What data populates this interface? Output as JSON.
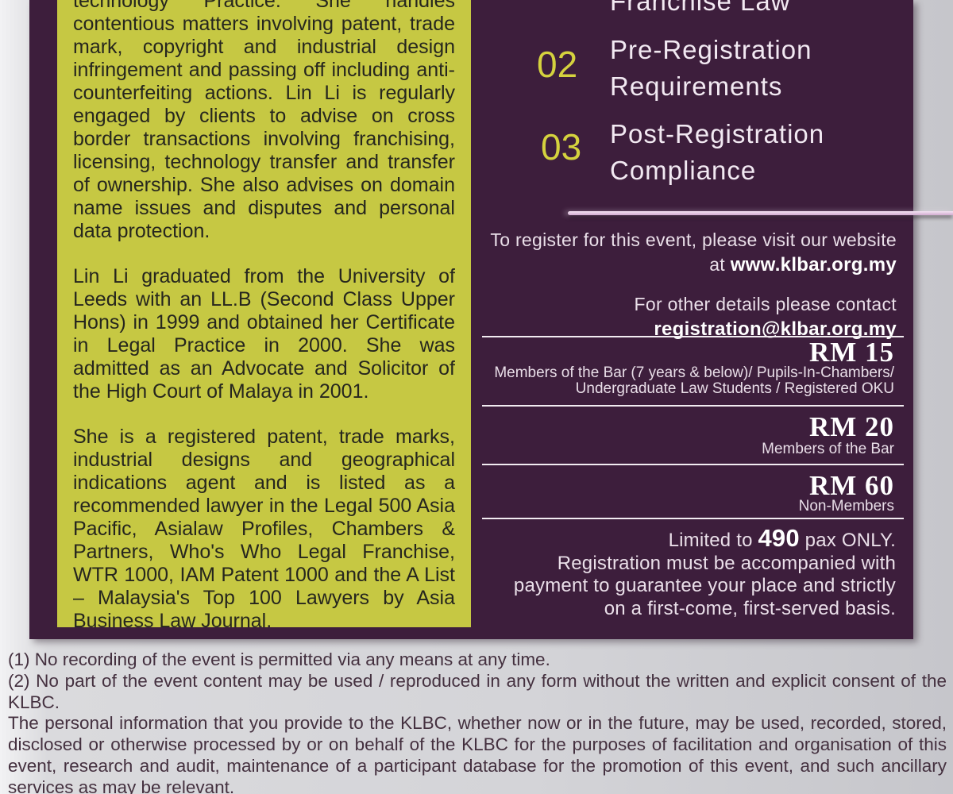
{
  "poster": {
    "bio": {
      "para1": "technology Practice. She handles contentious matters involving patent, trade mark, copyright and industrial design infringement and passing off including anti-counterfeiting actions. Lin Li is regularly engaged by clients to advise on cross border transactions involving franchising, licensing, technology transfer and transfer of ownership. She also advises on domain name issues and disputes and personal data protection.",
      "para2": "Lin Li graduated from the University of Leeds with an LL.B (Second Class Upper Hons) in 1999 and obtained her Certificate in Legal Practice in 2000. She was admitted as an Advocate and Solicitor of the High Court of Malaya in 2001.",
      "para3": "She is a registered patent, trade marks, industrial designs and geographical indications agent and is listed as a recommended lawyer in the Legal 500 Asia Pacific, Asialaw Profiles, Chambers & Partners, Who's Who Legal Franchise, WTR 1000, IAM Patent 1000 and the A List – Malaysia's Top 100 Lawyers by Asia Business Law Journal."
    },
    "agenda": {
      "item01_partial": "Franchise Law",
      "items": [
        {
          "number": "02",
          "line1": "Pre-Registration",
          "line2": "Requirements"
        },
        {
          "number": "03",
          "line1": "Post-Registration",
          "line2": "Compliance"
        }
      ]
    },
    "registration": {
      "line1": "To register for this event, please visit our website",
      "line2_prefix": "at ",
      "website": "www.klbar.org.my",
      "line3": "For other details please contact",
      "email": "registration@klbar.org.my"
    },
    "pricing": [
      {
        "amount": "RM 15",
        "lines": [
          "Members of the Bar (7 years & below)/ Pupils-In-Chambers/",
          "Undergraduate Law Students / Registered OKU"
        ]
      },
      {
        "amount": "RM 20",
        "lines": [
          "Members of the Bar"
        ]
      },
      {
        "amount": "RM 60",
        "lines": [
          "Non-Members"
        ]
      }
    ],
    "limit": {
      "prefix": "Limited to ",
      "count": "490",
      "suffix": " pax ONLY.",
      "line2": "Registration must  be accompanied with",
      "line3": "payment to guarantee your place and strictly",
      "line4": "on a first-come, first-served basis."
    }
  },
  "footer": {
    "note1": "(1) No recording of the event is permitted via any means at any time.",
    "note2": "(2) No part of the event content may be used / reproduced in any form without the written and explicit consent of the KLBC.",
    "privacy": "The personal information that you provide to the KLBC, whether now or in the future, may be used, recorded, stored, disclosed or otherwise processed by or on behalf of the KLBC for the purposes of facilitation and organisation of this event, research and audit, maintenance of a participant database for the promotion of this event, and such ancillary services as may be relevant."
  },
  "colors": {
    "purple": "#3d1e3c",
    "chartreuse": "#c6c843",
    "accent_yellow": "#d5d23e",
    "accent_pink": "#d9b4d8",
    "page_gray": "#d2d2d6"
  }
}
